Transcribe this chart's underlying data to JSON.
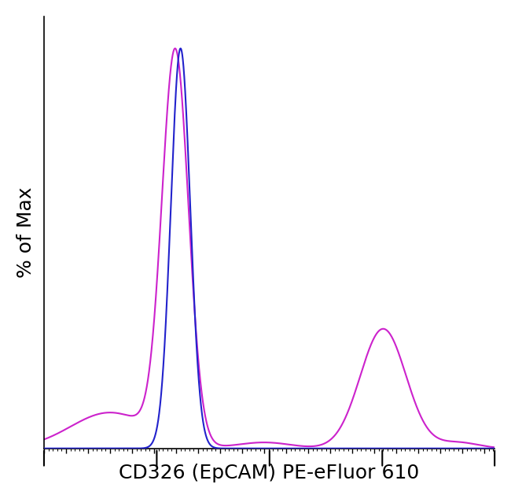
{
  "ylabel": "% of Max",
  "xlabel": "CD326 (EpCAM) PE-eFluor 610",
  "xlim": [
    0,
    1023
  ],
  "ylim": [
    0,
    1.08
  ],
  "background_color": "#ffffff",
  "blue_color": "#2222cc",
  "magenta_color": "#cc22cc",
  "blue_linewidth": 1.5,
  "magenta_linewidth": 1.5,
  "ylabel_fontsize": 18,
  "xlabel_fontsize": 18
}
